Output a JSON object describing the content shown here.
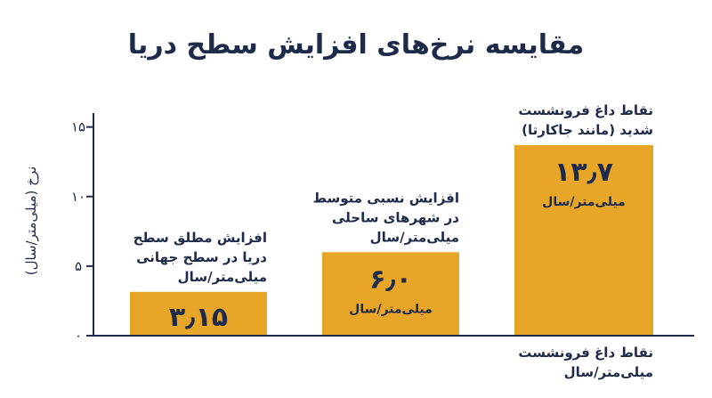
{
  "chart_data": {
    "type": "bar",
    "title": "مقایسه نرخ‌های افزایش سطح دریا",
    "ylabel": "نرخ (میلی‌متر/سال)",
    "xlabel": "",
    "ylim": [
      0,
      16
    ],
    "yticks": [
      {
        "value": 0,
        "label": "۰"
      },
      {
        "value": 5,
        "label": "۵"
      },
      {
        "value": 10,
        "label": "۱۰"
      },
      {
        "value": 15,
        "label": "۱۵"
      }
    ],
    "grid": false,
    "bar_color": "#e8a628",
    "axis_color": "#1e2a4a",
    "bars": [
      {
        "value": 3.15,
        "value_label": "۳٫۱۵",
        "annotation": [
          "افزایش مطلق سطح",
          "دریا در سطح جهانی",
          "میلی‌متر/سال"
        ],
        "unit_label": ""
      },
      {
        "value": 6.0,
        "value_label": "۶٫۰",
        "annotation": [
          "افزایش نسبی متوسط",
          "در شهرهای ساحلی",
          "میلی‌متر/سال"
        ],
        "unit_label": "میلی‌متر/سال"
      },
      {
        "value": 13.7,
        "value_label": "۱۳٫۷",
        "annotation": [
          "نقاط داغ فرونشست",
          "شدید (مانند جاکارتا)"
        ],
        "unit_label": "میلی‌متر/سال",
        "below_labels": [
          "نقاط داغ فرونشست",
          "میلی‌متر/سال"
        ]
      }
    ]
  }
}
